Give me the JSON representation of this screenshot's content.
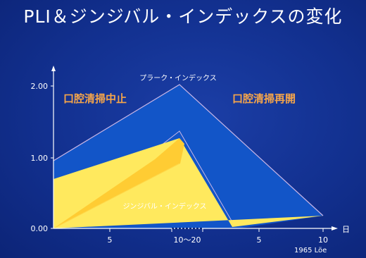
{
  "title": "PLI＆ジンジバル・インデックスの変化",
  "credit": "1965 Löe",
  "colors": {
    "background": "#1a3a9e",
    "plaque_fill": "#1255c8",
    "gingival_fill": "#ffe95e",
    "gingival_shade": "#ffcc33",
    "phase_label": "#f5a54a",
    "text": "#ffffff"
  },
  "chart_data": {
    "type": "area",
    "title": "PLI＆ジンジバル・インデックスの変化",
    "ylim": [
      0,
      2.0
    ],
    "y_ticks": [
      "0.00",
      "1.00",
      "2.00"
    ],
    "x_ticks": [
      "5",
      "10〜20",
      "5",
      "10"
    ],
    "x_unit": "日",
    "series": [
      {
        "name": "プラーク・インデックス",
        "points": [
          {
            "x": "0",
            "y": 0.95
          },
          {
            "x": "10〜20",
            "y": 2.0
          },
          {
            "x": "10",
            "y": 0.18
          }
        ]
      },
      {
        "name": "ジンジバル・インデックス",
        "upper": [
          {
            "x": "0",
            "y": 0.7
          },
          {
            "x": "10〜20",
            "y": 1.28
          },
          {
            "x": "10",
            "y": 0.18
          }
        ],
        "lower": [
          {
            "x": "0",
            "y": 0.0
          },
          {
            "x": "10〜20",
            "y": 0.92
          },
          {
            "x": "10",
            "y": 0.18
          }
        ]
      }
    ],
    "phase_labels": [
      "口腔清掃中止",
      "口腔清掃再開"
    ]
  }
}
